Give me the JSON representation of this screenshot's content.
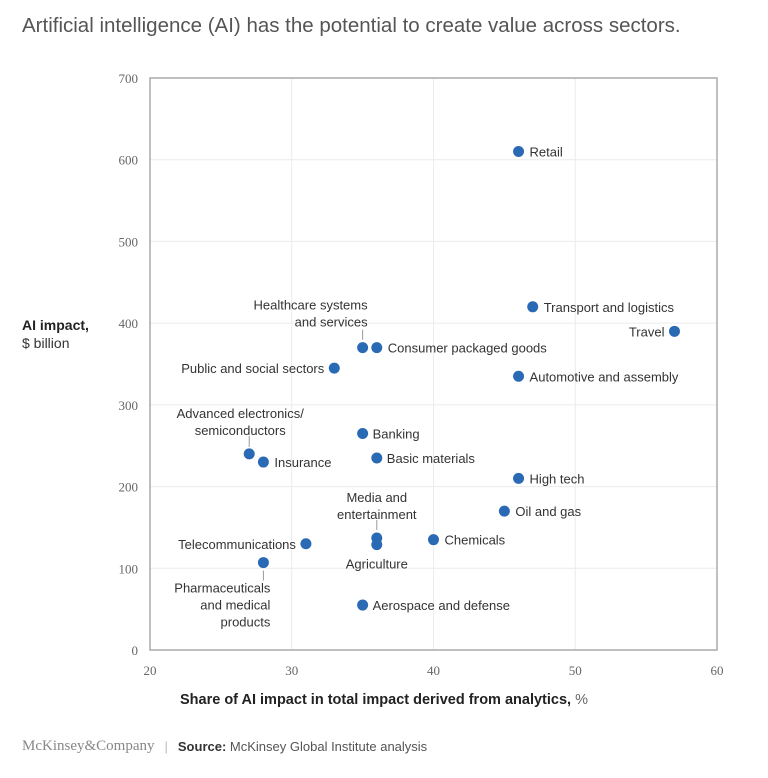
{
  "title": "Artificial intelligence (AI) has the potential to create value across sectors.",
  "chart_data": {
    "type": "scatter",
    "xlabel": "Share of AI impact in total impact derived from analytics,",
    "xlabel_unit": "%",
    "ylabel": "AI impact,",
    "ylabel_unit": "$ billion",
    "xlim": [
      20,
      60
    ],
    "ylim": [
      0,
      700
    ],
    "xticks": [
      "20",
      "30",
      "40",
      "50",
      "60"
    ],
    "yticks": [
      "0",
      "100",
      "200",
      "300",
      "400",
      "500",
      "600",
      "700"
    ],
    "grid": true,
    "point_color": "#2a6ab5",
    "points": [
      {
        "label": "Retail",
        "x": 46,
        "y": 610
      },
      {
        "label": "Transport and logistics",
        "x": 47,
        "y": 420
      },
      {
        "label": "Travel",
        "x": 57,
        "y": 390
      },
      {
        "label": "Healthcare systems|and services",
        "x": 35,
        "y": 370
      },
      {
        "label": "Consumer packaged goods",
        "x": 36,
        "y": 370
      },
      {
        "label": "Public and social sectors",
        "x": 33,
        "y": 345
      },
      {
        "label": "Automotive and assembly",
        "x": 46,
        "y": 335
      },
      {
        "label": "Banking",
        "x": 35,
        "y": 265
      },
      {
        "label": "Advanced electronics/|semiconductors",
        "x": 27,
        "y": 240
      },
      {
        "label": "Insurance",
        "x": 28,
        "y": 230
      },
      {
        "label": "Basic materials",
        "x": 36,
        "y": 235
      },
      {
        "label": "High tech",
        "x": 46,
        "y": 210
      },
      {
        "label": "Oil and gas",
        "x": 45,
        "y": 170
      },
      {
        "label": "Media and|entertainment",
        "x": 36,
        "y": 137
      },
      {
        "label": "Agriculture",
        "x": 36,
        "y": 129
      },
      {
        "label": "Chemicals",
        "x": 40,
        "y": 135
      },
      {
        "label": "Telecommunications",
        "x": 31,
        "y": 130
      },
      {
        "label": "Pharmaceuticals|and medical|products",
        "x": 28,
        "y": 107
      },
      {
        "label": "Aerospace and defense",
        "x": 35,
        "y": 55
      }
    ]
  },
  "footer": {
    "logo": "McKinsey&Company",
    "source_label": "Source:",
    "source_text": "McKinsey Global Institute analysis"
  }
}
